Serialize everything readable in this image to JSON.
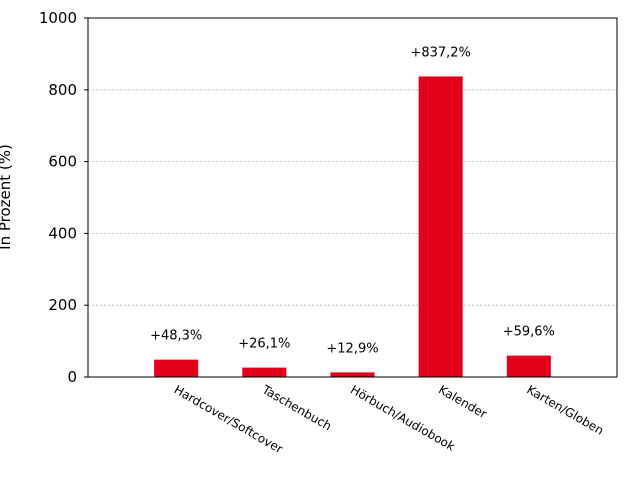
{
  "chart_data": {
    "type": "bar",
    "y_label": "In Prozent (%)",
    "categories": [
      "Hardcover/Softcover",
      "Taschenbuch",
      "Hörbuch/Audiobook",
      "Kalender",
      "Karten/Globen"
    ],
    "values": [
      48.3,
      26.1,
      12.9,
      837.2,
      59.6
    ],
    "value_labels": [
      "+48,3%",
      "+26,1%",
      "+12,9%",
      "+837,2%",
      "+59,6%"
    ],
    "color": "#e2001a",
    "ylim": [
      0,
      1000
    ],
    "yticks": [
      0,
      200,
      400,
      600,
      800,
      1000
    ],
    "grid": true
  }
}
